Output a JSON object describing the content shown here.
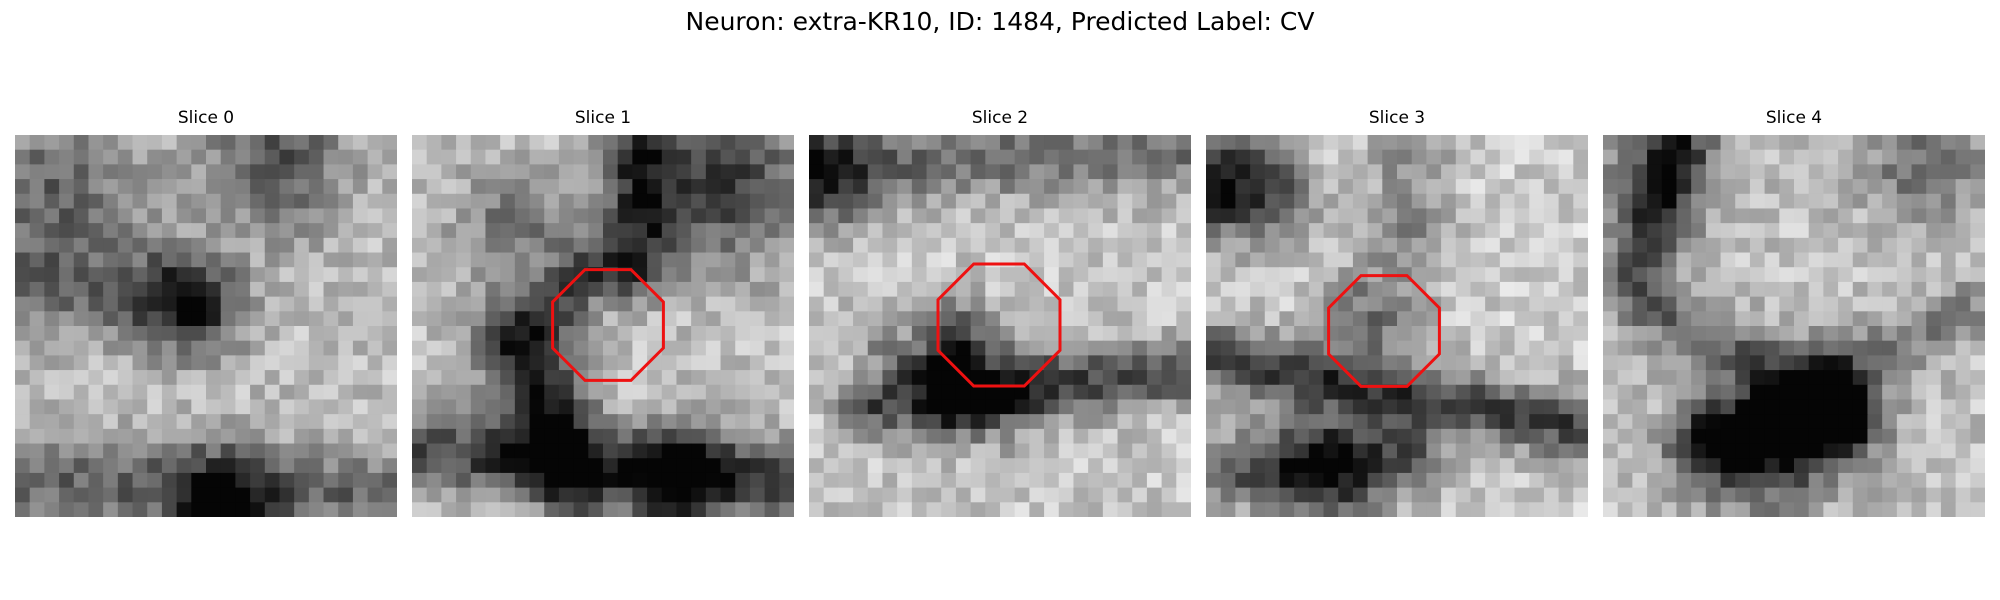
{
  "figure": {
    "title": "Neuron: extra-KR10, ID: 1484, Predicted Label: CV"
  },
  "slices": [
    {
      "title": "Slice 0",
      "has_outline": false
    },
    {
      "title": "Slice 1",
      "has_outline": true
    },
    {
      "title": "Slice 2",
      "has_outline": true
    },
    {
      "title": "Slice 3",
      "has_outline": true
    },
    {
      "title": "Slice 4",
      "has_outline": false
    }
  ],
  "colors": {
    "outline": "#ee1111"
  }
}
